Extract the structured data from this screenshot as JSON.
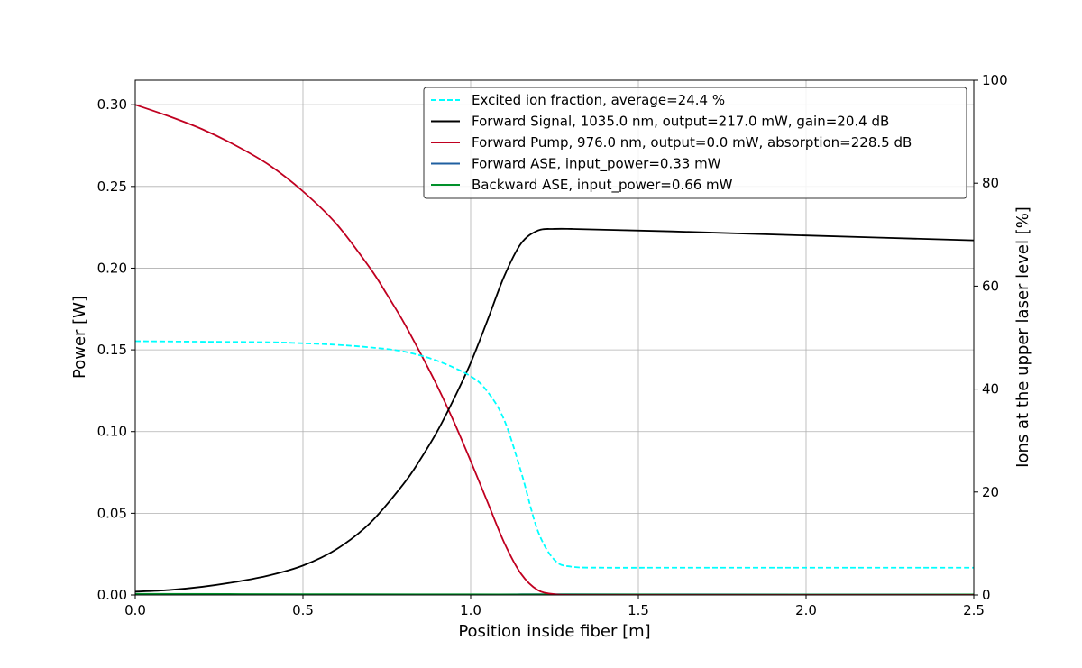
{
  "chart_data": {
    "type": "line",
    "xlabel": "Position inside fiber [m]",
    "ylabel": "Power [W]",
    "y2label": "Ions at the upper laser level [%]",
    "xlim": [
      0,
      2.5
    ],
    "ylim": [
      0,
      0.315
    ],
    "y2lim": [
      0,
      100
    ],
    "grid": true,
    "legend_position": "top-right",
    "x_ticks": [
      {
        "value": 0.0,
        "label": "0.0"
      },
      {
        "value": 0.5,
        "label": "0.5"
      },
      {
        "value": 1.0,
        "label": "1.0"
      },
      {
        "value": 1.5,
        "label": "1.5"
      },
      {
        "value": 2.0,
        "label": "2.0"
      },
      {
        "value": 2.5,
        "label": "2.5"
      }
    ],
    "y_ticks": [
      {
        "value": 0.0,
        "label": "0.00"
      },
      {
        "value": 0.05,
        "label": "0.05"
      },
      {
        "value": 0.1,
        "label": "0.10"
      },
      {
        "value": 0.15,
        "label": "0.15"
      },
      {
        "value": 0.2,
        "label": "0.20"
      },
      {
        "value": 0.25,
        "label": "0.25"
      },
      {
        "value": 0.3,
        "label": "0.30"
      }
    ],
    "y2_ticks": [
      {
        "value": 0,
        "label": "0"
      },
      {
        "value": 20,
        "label": "20"
      },
      {
        "value": 40,
        "label": "40"
      },
      {
        "value": 60,
        "label": "60"
      },
      {
        "value": 80,
        "label": "80"
      },
      {
        "value": 100,
        "label": "100"
      }
    ],
    "series": [
      {
        "name": "Excited ion fraction, average=24.4 %",
        "axis": "right",
        "color": "#00ffff",
        "dashed": true,
        "x": [
          0,
          0.2,
          0.4,
          0.5,
          0.6,
          0.7,
          0.8,
          0.9,
          1.0,
          1.05,
          1.1,
          1.15,
          1.2,
          1.25,
          1.3,
          1.4,
          1.6,
          2.0,
          2.5
        ],
        "y": [
          49.3,
          49.2,
          49.1,
          48.9,
          48.6,
          48.1,
          47.3,
          45.5,
          42.5,
          39.5,
          34.0,
          24.0,
          12.5,
          6.8,
          5.5,
          5.3,
          5.3,
          5.3,
          5.3
        ]
      },
      {
        "name": "Forward Signal, 1035.0 nm, output=217.0 mW, gain=20.4 dB",
        "axis": "left",
        "color": "#000000",
        "dashed": false,
        "x": [
          0,
          0.1,
          0.2,
          0.3,
          0.4,
          0.5,
          0.6,
          0.7,
          0.8,
          0.85,
          0.9,
          0.95,
          1.0,
          1.05,
          1.1,
          1.15,
          1.2,
          1.25,
          1.3,
          1.4,
          1.6,
          2.0,
          2.5
        ],
        "y": [
          0.002,
          0.003,
          0.005,
          0.008,
          0.012,
          0.018,
          0.028,
          0.044,
          0.068,
          0.083,
          0.1,
          0.12,
          0.142,
          0.168,
          0.195,
          0.215,
          0.223,
          0.224,
          0.224,
          0.2235,
          0.2225,
          0.22,
          0.217
        ]
      },
      {
        "name": "Forward Pump, 976.0 nm, output=0.0 mW, absorption=228.5 dB",
        "axis": "left",
        "color": "#c00020",
        "dashed": false,
        "x": [
          0,
          0.1,
          0.2,
          0.3,
          0.4,
          0.5,
          0.6,
          0.7,
          0.75,
          0.8,
          0.85,
          0.9,
          0.95,
          1.0,
          1.05,
          1.1,
          1.15,
          1.2,
          1.25,
          1.3,
          1.4,
          2.5
        ],
        "y": [
          0.3,
          0.293,
          0.285,
          0.275,
          0.263,
          0.247,
          0.227,
          0.2,
          0.184,
          0.167,
          0.148,
          0.128,
          0.106,
          0.082,
          0.057,
          0.032,
          0.013,
          0.003,
          0.0005,
          0.0,
          0.0,
          0.0
        ]
      },
      {
        "name": "Forward ASE, input_power=0.33 mW",
        "axis": "left",
        "color": "#1f5fa0",
        "dashed": false,
        "x": [
          0,
          1.0,
          1.2,
          1.5,
          2.5
        ],
        "y": [
          0.0003,
          0.0003,
          0.0005,
          0.0004,
          0.0003
        ]
      },
      {
        "name": "Backward ASE, input_power=0.66 mW",
        "axis": "left",
        "color": "#00902a",
        "dashed": false,
        "x": [
          0,
          0.5,
          1.0,
          1.5,
          2.5
        ],
        "y": [
          0.0007,
          0.0005,
          0.0004,
          0.0003,
          0.0003
        ]
      }
    ]
  }
}
